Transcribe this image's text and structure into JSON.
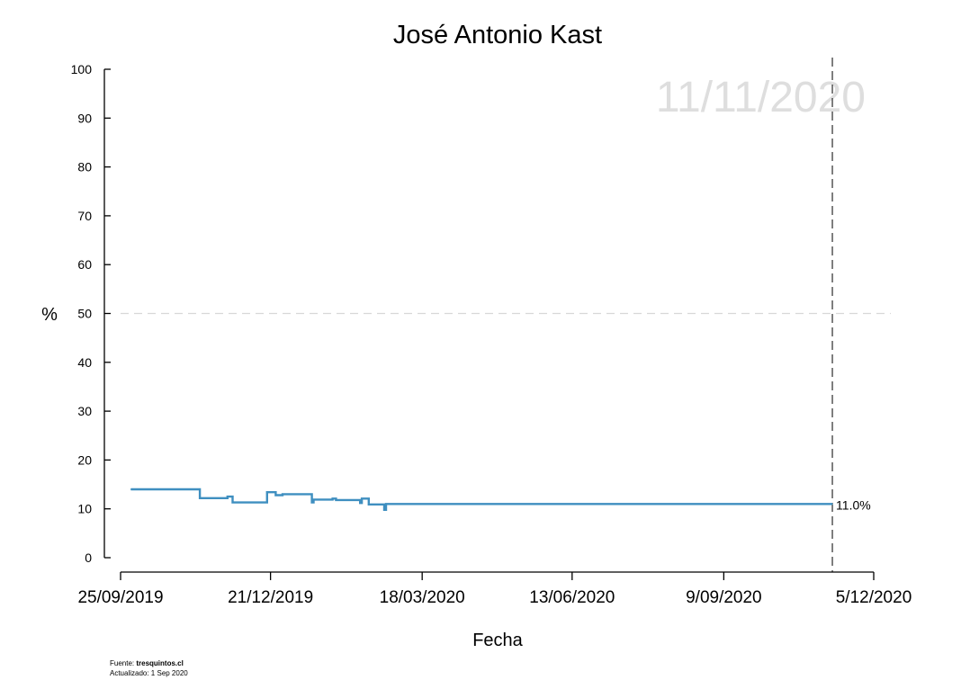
{
  "chart_data": {
    "type": "line",
    "title": "José Antonio Kast",
    "watermark_date": "11/11/2020",
    "xlabel": "Fecha",
    "ylabel": "%",
    "ylim": [
      0,
      100
    ],
    "xlim": [
      "2019-09-25",
      "2020-12-05"
    ],
    "x_ticks": [
      {
        "date": "2019-09-25",
        "label": "25/09/2019"
      },
      {
        "date": "2019-12-21",
        "label": "21/12/2019"
      },
      {
        "date": "2020-03-18",
        "label": "18/03/2020"
      },
      {
        "date": "2020-06-13",
        "label": "13/06/2020"
      },
      {
        "date": "2020-09-09",
        "label": "9/09/2020"
      },
      {
        "date": "2020-12-05",
        "label": "5/12/2020"
      }
    ],
    "y_ticks": [
      0,
      10,
      20,
      30,
      40,
      50,
      60,
      70,
      80,
      90,
      100
    ],
    "reference_line_y": 50,
    "current_date": "2020-11-11",
    "end_label": "11.0%",
    "series": [
      {
        "color": "#3f8fc0",
        "points": [
          {
            "x": "2019-10-01",
            "y": 14.0
          },
          {
            "x": "2019-11-10",
            "y": 14.0
          },
          {
            "x": "2019-11-10",
            "y": 12.2
          },
          {
            "x": "2019-11-26",
            "y": 12.2
          },
          {
            "x": "2019-11-26",
            "y": 12.5
          },
          {
            "x": "2019-11-29",
            "y": 12.5
          },
          {
            "x": "2019-11-29",
            "y": 11.3
          },
          {
            "x": "2019-12-19",
            "y": 11.3
          },
          {
            "x": "2019-12-19",
            "y": 13.4
          },
          {
            "x": "2019-12-24",
            "y": 13.4
          },
          {
            "x": "2019-12-24",
            "y": 12.8
          },
          {
            "x": "2019-12-28",
            "y": 12.8
          },
          {
            "x": "2019-12-28",
            "y": 13.0
          },
          {
            "x": "2020-01-14",
            "y": 13.0
          },
          {
            "x": "2020-01-14",
            "y": 11.3
          },
          {
            "x": "2020-01-15",
            "y": 11.3
          },
          {
            "x": "2020-01-15",
            "y": 11.9
          },
          {
            "x": "2020-01-26",
            "y": 11.9
          },
          {
            "x": "2020-01-26",
            "y": 12.1
          },
          {
            "x": "2020-01-28",
            "y": 12.1
          },
          {
            "x": "2020-01-28",
            "y": 11.8
          },
          {
            "x": "2020-02-11",
            "y": 11.8
          },
          {
            "x": "2020-02-11",
            "y": 11.2
          },
          {
            "x": "2020-02-12",
            "y": 11.2
          },
          {
            "x": "2020-02-12",
            "y": 12.1
          },
          {
            "x": "2020-02-16",
            "y": 12.1
          },
          {
            "x": "2020-02-16",
            "y": 10.9
          },
          {
            "x": "2020-02-25",
            "y": 10.9
          },
          {
            "x": "2020-02-25",
            "y": 9.8
          },
          {
            "x": "2020-02-26",
            "y": 9.8
          },
          {
            "x": "2020-02-26",
            "y": 11.0
          },
          {
            "x": "2020-11-11",
            "y": 11.0
          }
        ]
      }
    ]
  },
  "footer": {
    "source_prefix": "Fuente: ",
    "source_name": "tresquintos.cl",
    "updated": "Actualizado: 1 Sep 2020"
  }
}
